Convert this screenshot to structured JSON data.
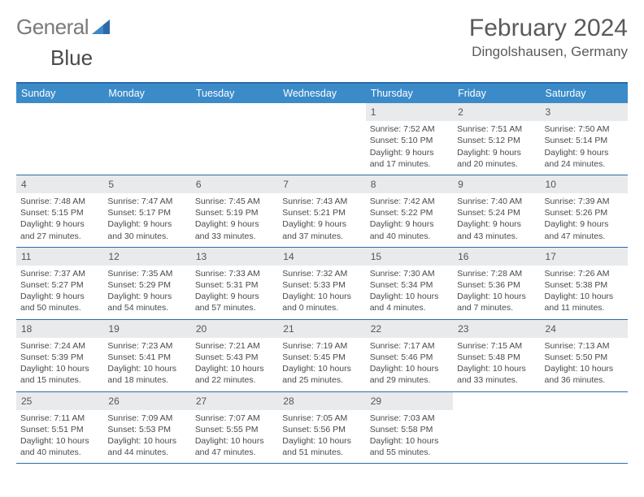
{
  "brand": {
    "part1": "General",
    "part2": "Blue"
  },
  "colors": {
    "header_bar": "#3b8bc9",
    "rule": "#2f6aa8",
    "daynum_bg": "#e9eaec",
    "text": "#4a4a4a",
    "title": "#5a5a5a",
    "logo_gray": "#7a7a7a",
    "logo_blue": "#2f6aa8",
    "white": "#ffffff"
  },
  "title": {
    "month": "February 2024",
    "location": "Dingolshausen, Germany"
  },
  "dow": [
    "Sunday",
    "Monday",
    "Tuesday",
    "Wednesday",
    "Thursday",
    "Friday",
    "Saturday"
  ],
  "weeks": [
    [
      {
        "empty": true
      },
      {
        "empty": true
      },
      {
        "empty": true
      },
      {
        "empty": true
      },
      {
        "n": "1",
        "sunrise": "Sunrise: 7:52 AM",
        "sunset": "Sunset: 5:10 PM",
        "dl1": "Daylight: 9 hours",
        "dl2": "and 17 minutes."
      },
      {
        "n": "2",
        "sunrise": "Sunrise: 7:51 AM",
        "sunset": "Sunset: 5:12 PM",
        "dl1": "Daylight: 9 hours",
        "dl2": "and 20 minutes."
      },
      {
        "n": "3",
        "sunrise": "Sunrise: 7:50 AM",
        "sunset": "Sunset: 5:14 PM",
        "dl1": "Daylight: 9 hours",
        "dl2": "and 24 minutes."
      }
    ],
    [
      {
        "n": "4",
        "sunrise": "Sunrise: 7:48 AM",
        "sunset": "Sunset: 5:15 PM",
        "dl1": "Daylight: 9 hours",
        "dl2": "and 27 minutes."
      },
      {
        "n": "5",
        "sunrise": "Sunrise: 7:47 AM",
        "sunset": "Sunset: 5:17 PM",
        "dl1": "Daylight: 9 hours",
        "dl2": "and 30 minutes."
      },
      {
        "n": "6",
        "sunrise": "Sunrise: 7:45 AM",
        "sunset": "Sunset: 5:19 PM",
        "dl1": "Daylight: 9 hours",
        "dl2": "and 33 minutes."
      },
      {
        "n": "7",
        "sunrise": "Sunrise: 7:43 AM",
        "sunset": "Sunset: 5:21 PM",
        "dl1": "Daylight: 9 hours",
        "dl2": "and 37 minutes."
      },
      {
        "n": "8",
        "sunrise": "Sunrise: 7:42 AM",
        "sunset": "Sunset: 5:22 PM",
        "dl1": "Daylight: 9 hours",
        "dl2": "and 40 minutes."
      },
      {
        "n": "9",
        "sunrise": "Sunrise: 7:40 AM",
        "sunset": "Sunset: 5:24 PM",
        "dl1": "Daylight: 9 hours",
        "dl2": "and 43 minutes."
      },
      {
        "n": "10",
        "sunrise": "Sunrise: 7:39 AM",
        "sunset": "Sunset: 5:26 PM",
        "dl1": "Daylight: 9 hours",
        "dl2": "and 47 minutes."
      }
    ],
    [
      {
        "n": "11",
        "sunrise": "Sunrise: 7:37 AM",
        "sunset": "Sunset: 5:27 PM",
        "dl1": "Daylight: 9 hours",
        "dl2": "and 50 minutes."
      },
      {
        "n": "12",
        "sunrise": "Sunrise: 7:35 AM",
        "sunset": "Sunset: 5:29 PM",
        "dl1": "Daylight: 9 hours",
        "dl2": "and 54 minutes."
      },
      {
        "n": "13",
        "sunrise": "Sunrise: 7:33 AM",
        "sunset": "Sunset: 5:31 PM",
        "dl1": "Daylight: 9 hours",
        "dl2": "and 57 minutes."
      },
      {
        "n": "14",
        "sunrise": "Sunrise: 7:32 AM",
        "sunset": "Sunset: 5:33 PM",
        "dl1": "Daylight: 10 hours",
        "dl2": "and 0 minutes."
      },
      {
        "n": "15",
        "sunrise": "Sunrise: 7:30 AM",
        "sunset": "Sunset: 5:34 PM",
        "dl1": "Daylight: 10 hours",
        "dl2": "and 4 minutes."
      },
      {
        "n": "16",
        "sunrise": "Sunrise: 7:28 AM",
        "sunset": "Sunset: 5:36 PM",
        "dl1": "Daylight: 10 hours",
        "dl2": "and 7 minutes."
      },
      {
        "n": "17",
        "sunrise": "Sunrise: 7:26 AM",
        "sunset": "Sunset: 5:38 PM",
        "dl1": "Daylight: 10 hours",
        "dl2": "and 11 minutes."
      }
    ],
    [
      {
        "n": "18",
        "sunrise": "Sunrise: 7:24 AM",
        "sunset": "Sunset: 5:39 PM",
        "dl1": "Daylight: 10 hours",
        "dl2": "and 15 minutes."
      },
      {
        "n": "19",
        "sunrise": "Sunrise: 7:23 AM",
        "sunset": "Sunset: 5:41 PM",
        "dl1": "Daylight: 10 hours",
        "dl2": "and 18 minutes."
      },
      {
        "n": "20",
        "sunrise": "Sunrise: 7:21 AM",
        "sunset": "Sunset: 5:43 PM",
        "dl1": "Daylight: 10 hours",
        "dl2": "and 22 minutes."
      },
      {
        "n": "21",
        "sunrise": "Sunrise: 7:19 AM",
        "sunset": "Sunset: 5:45 PM",
        "dl1": "Daylight: 10 hours",
        "dl2": "and 25 minutes."
      },
      {
        "n": "22",
        "sunrise": "Sunrise: 7:17 AM",
        "sunset": "Sunset: 5:46 PM",
        "dl1": "Daylight: 10 hours",
        "dl2": "and 29 minutes."
      },
      {
        "n": "23",
        "sunrise": "Sunrise: 7:15 AM",
        "sunset": "Sunset: 5:48 PM",
        "dl1": "Daylight: 10 hours",
        "dl2": "and 33 minutes."
      },
      {
        "n": "24",
        "sunrise": "Sunrise: 7:13 AM",
        "sunset": "Sunset: 5:50 PM",
        "dl1": "Daylight: 10 hours",
        "dl2": "and 36 minutes."
      }
    ],
    [
      {
        "n": "25",
        "sunrise": "Sunrise: 7:11 AM",
        "sunset": "Sunset: 5:51 PM",
        "dl1": "Daylight: 10 hours",
        "dl2": "and 40 minutes."
      },
      {
        "n": "26",
        "sunrise": "Sunrise: 7:09 AM",
        "sunset": "Sunset: 5:53 PM",
        "dl1": "Daylight: 10 hours",
        "dl2": "and 44 minutes."
      },
      {
        "n": "27",
        "sunrise": "Sunrise: 7:07 AM",
        "sunset": "Sunset: 5:55 PM",
        "dl1": "Daylight: 10 hours",
        "dl2": "and 47 minutes."
      },
      {
        "n": "28",
        "sunrise": "Sunrise: 7:05 AM",
        "sunset": "Sunset: 5:56 PM",
        "dl1": "Daylight: 10 hours",
        "dl2": "and 51 minutes."
      },
      {
        "n": "29",
        "sunrise": "Sunrise: 7:03 AM",
        "sunset": "Sunset: 5:58 PM",
        "dl1": "Daylight: 10 hours",
        "dl2": "and 55 minutes."
      },
      {
        "empty": true
      },
      {
        "empty": true
      }
    ]
  ]
}
